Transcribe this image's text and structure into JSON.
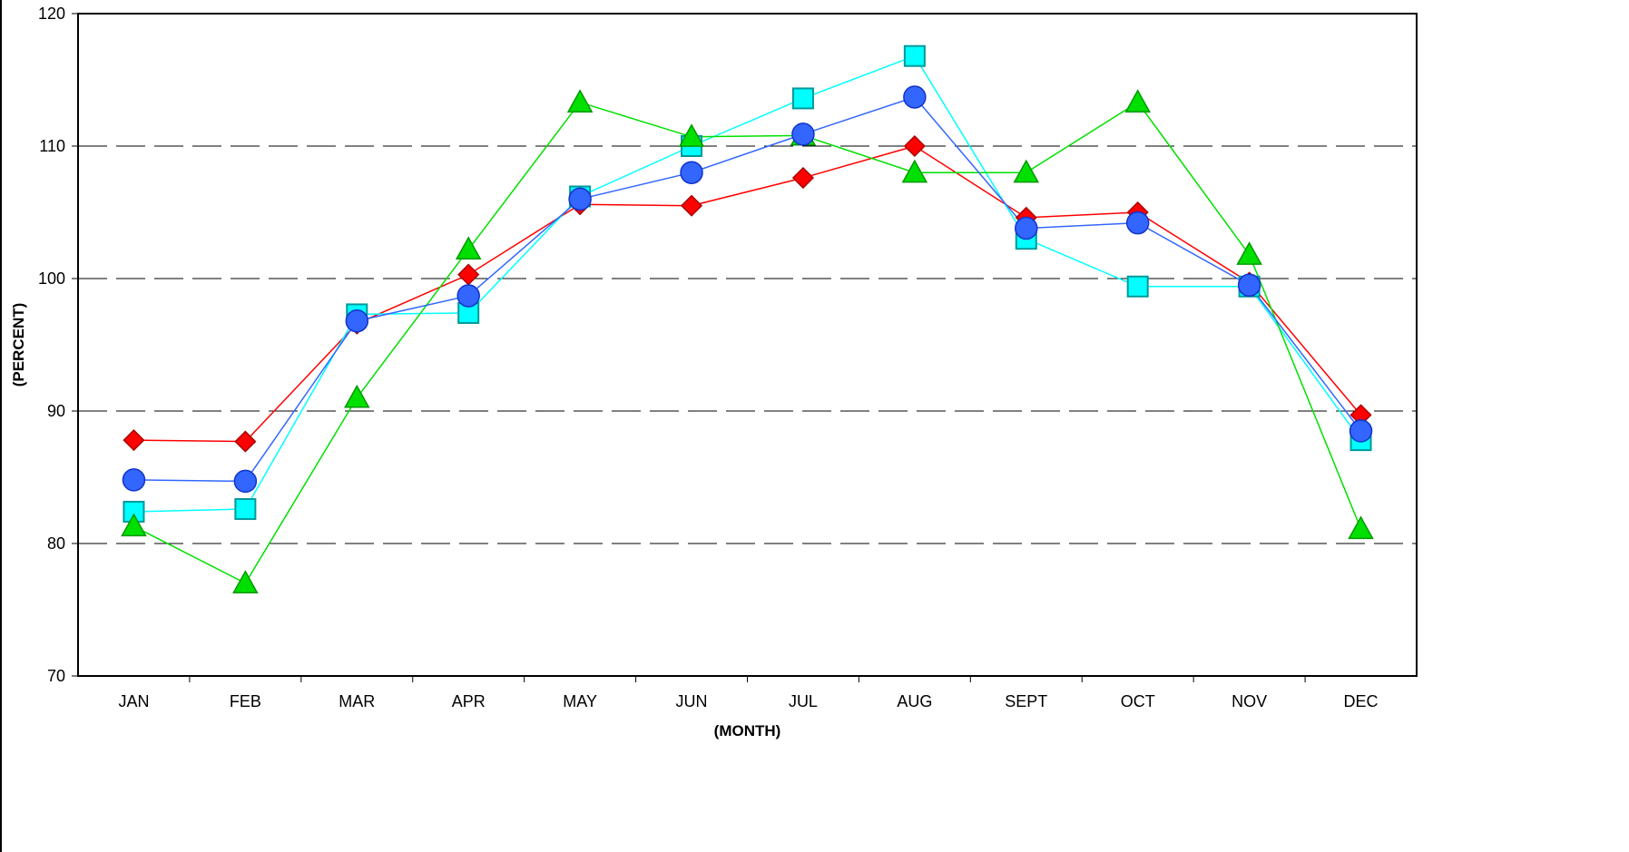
{
  "chart_data": {
    "type": "line",
    "title": "",
    "xlabel": "(MONTH)",
    "ylabel": "(PERCENT)",
    "categories": [
      "JAN",
      "FEB",
      "MAR",
      "APR",
      "MAY",
      "JUN",
      "JUL",
      "AUG",
      "SEPT",
      "OCT",
      "NOV",
      "DEC"
    ],
    "ylim": [
      70,
      120
    ],
    "yticks": [
      70,
      80,
      90,
      100,
      110,
      120
    ],
    "grid": {
      "y": "dashed",
      "lines_at": [
        80,
        90,
        100,
        110
      ]
    },
    "legend": "none",
    "series": [
      {
        "marker": "diamond",
        "color": "#ff0000",
        "values": [
          87.8,
          87.7,
          96.6,
          100.3,
          105.6,
          105.5,
          107.6,
          110.0,
          104.6,
          105.0,
          99.7,
          89.7
        ]
      },
      {
        "marker": "square",
        "color": "#00ffff",
        "values": [
          82.4,
          82.6,
          97.3,
          97.4,
          106.2,
          110.0,
          113.6,
          116.8,
          103.0,
          99.4,
          99.4,
          87.8
        ]
      },
      {
        "marker": "triangle",
        "color": "#00e000",
        "values": [
          81.3,
          77.0,
          91.0,
          102.2,
          113.3,
          110.7,
          110.8,
          108.0,
          108.0,
          113.3,
          101.8,
          81.1
        ]
      },
      {
        "marker": "circle",
        "color": "#3366ff",
        "values": [
          84.8,
          84.7,
          96.8,
          98.7,
          106.0,
          108.0,
          110.9,
          113.7,
          103.8,
          104.2,
          99.5,
          88.5
        ]
      }
    ]
  }
}
